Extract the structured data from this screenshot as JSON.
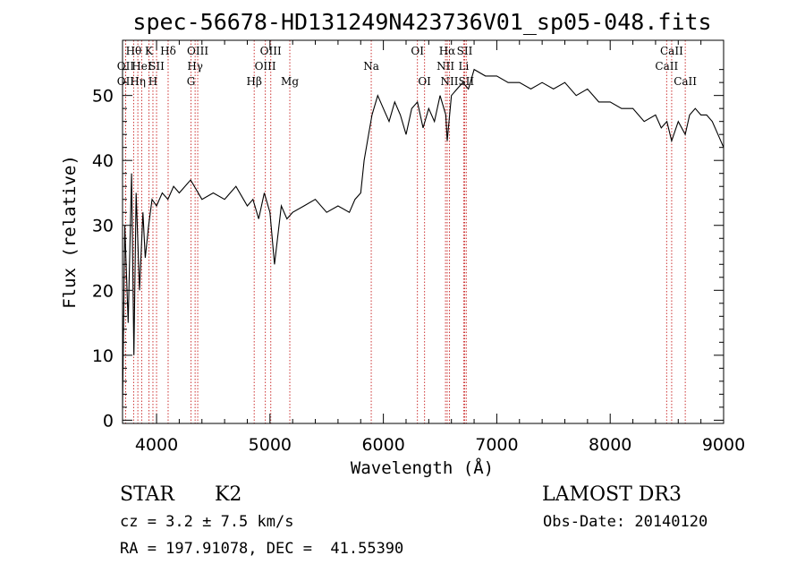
{
  "chart_data": {
    "type": "line",
    "title": "spec-56678-HD131249N423736V01_sp05-048.fits",
    "xlabel": "Wavelength (Å)",
    "ylabel": "Flux (relative)",
    "xlim": [
      3700,
      9000
    ],
    "ylim": [
      -0.5,
      58.5
    ],
    "xticks": [
      4000,
      5000,
      6000,
      7000,
      8000,
      9000
    ],
    "yticks": [
      0,
      10,
      20,
      30,
      40,
      50
    ],
    "grid": false,
    "legend": "none",
    "series": [
      {
        "x": [
          3700,
          3720,
          3750,
          3780,
          3800,
          3820,
          3850,
          3880,
          3900,
          3930,
          3960,
          4000,
          4050,
          4100,
          4150,
          4200,
          4300,
          4400,
          4500,
          4600,
          4700,
          4800,
          4850,
          4900,
          4950,
          5000,
          5040,
          5100,
          5150,
          5200,
          5300,
          5400,
          5500,
          5600,
          5700,
          5750,
          5800,
          5830,
          5870,
          5900,
          5950,
          6000,
          6050,
          6100,
          6150,
          6200,
          6250,
          6300,
          6350,
          6400,
          6450,
          6500,
          6550,
          6563,
          6600,
          6650,
          6700,
          6750,
          6800,
          6900,
          7000,
          7100,
          7200,
          7300,
          7400,
          7500,
          7600,
          7700,
          7800,
          7900,
          8000,
          8100,
          8200,
          8300,
          8400,
          8450,
          8500,
          8542,
          8600,
          8662,
          8700,
          8750,
          8800,
          8850,
          8900,
          8950,
          9000
        ],
        "y": [
          2,
          30,
          15,
          38,
          10,
          35,
          20,
          32,
          25,
          30,
          34,
          33,
          35,
          34,
          36,
          35,
          37,
          34,
          35,
          34,
          36,
          33,
          34,
          31,
          35,
          32,
          24,
          33,
          31,
          32,
          33,
          34,
          32,
          33,
          32,
          34,
          35,
          40,
          44,
          47,
          50,
          48,
          46,
          49,
          47,
          44,
          48,
          49,
          45,
          48,
          46,
          50,
          47,
          43,
          50,
          51,
          52,
          51,
          54,
          53,
          53,
          52,
          52,
          51,
          52,
          51,
          52,
          50,
          51,
          49,
          49,
          48,
          48,
          46,
          47,
          45,
          46,
          43,
          46,
          44,
          47,
          48,
          47,
          47,
          46,
          44,
          42
        ]
      }
    ],
    "line_markers": [
      {
        "w": 3727,
        "label": "OII",
        "row": 1
      },
      {
        "w": 3727,
        "label": "OII",
        "row": 2
      },
      {
        "w": 3798,
        "label": "Hθ",
        "row": 0
      },
      {
        "w": 3835,
        "label": "Hη",
        "row": 2
      },
      {
        "w": 3869,
        "label": "HeI",
        "row": 1
      },
      {
        "w": 3933,
        "label": "K",
        "row": 0
      },
      {
        "w": 3968,
        "label": "H",
        "row": 2
      },
      {
        "w": 4000,
        "label": "SII",
        "row": 1
      },
      {
        "w": 4102,
        "label": "Hδ",
        "row": 0
      },
      {
        "w": 4304,
        "label": "G",
        "row": 2
      },
      {
        "w": 4340,
        "label": "Hγ",
        "row": 1
      },
      {
        "w": 4363,
        "label": "OIII",
        "row": 0
      },
      {
        "w": 4861,
        "label": "Hβ",
        "row": 2
      },
      {
        "w": 4959,
        "label": "OIII",
        "row": 1
      },
      {
        "w": 5007,
        "label": "OIII",
        "row": 0
      },
      {
        "w": 5175,
        "label": "Mg",
        "row": 2
      },
      {
        "w": 5893,
        "label": "Na",
        "row": 1
      },
      {
        "w": 6300,
        "label": "OI",
        "row": 0
      },
      {
        "w": 6363,
        "label": "OI",
        "row": 2
      },
      {
        "w": 6548,
        "label": "NII",
        "row": 1
      },
      {
        "w": 6563,
        "label": "Hα",
        "row": 0
      },
      {
        "w": 6583,
        "label": "NII",
        "row": 2
      },
      {
        "w": 6708,
        "label": "Li",
        "row": 1
      },
      {
        "w": 6717,
        "label": "SII",
        "row": 0
      },
      {
        "w": 6731,
        "label": "SII",
        "row": 2
      },
      {
        "w": 8498,
        "label": "CaII",
        "row": 1
      },
      {
        "w": 8542,
        "label": "CaII",
        "row": 0
      },
      {
        "w": 8662,
        "label": "CaII",
        "row": 2
      }
    ]
  },
  "info": {
    "object_class": "STAR",
    "subclass": "K2",
    "cz": "cz = 3.2 ± 7.5 km/s",
    "coords": "RA = 197.91078, DEC =  41.55390",
    "survey": "LAMOST DR3",
    "obs_date": "Obs-Date: 20140120"
  },
  "colors": {
    "marker_lines": "#cc3333",
    "spectrum": "#000000"
  }
}
